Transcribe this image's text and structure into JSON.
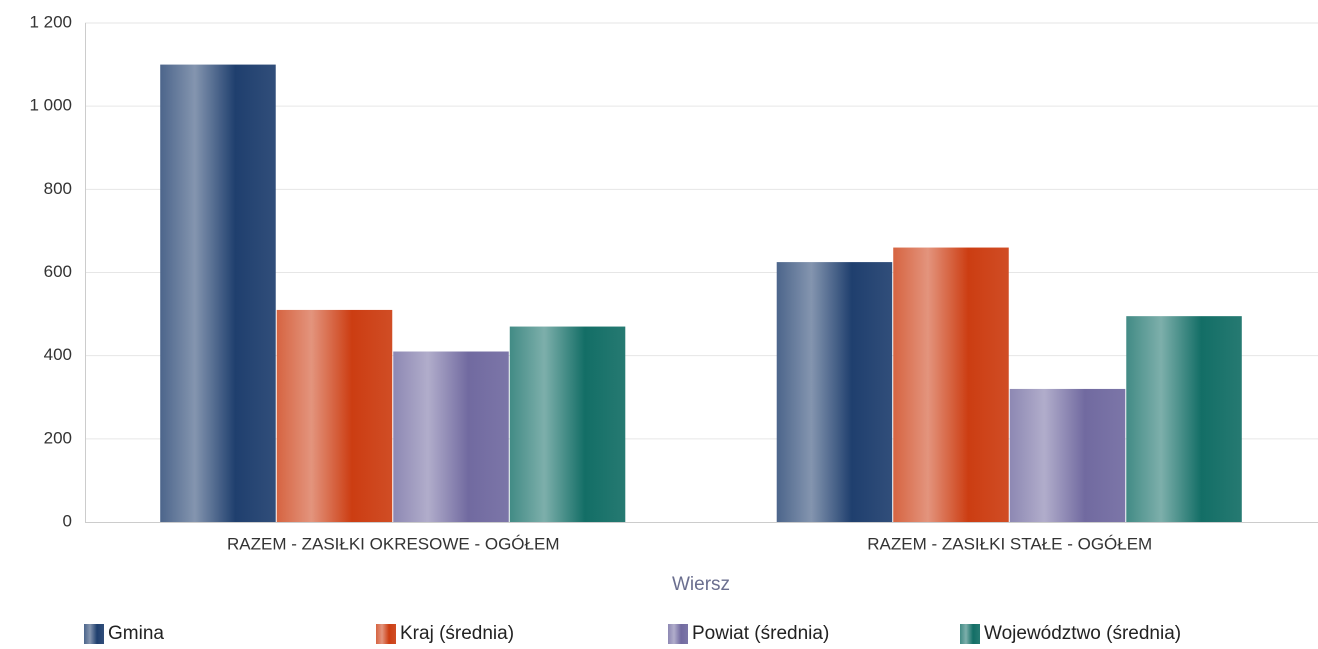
{
  "chart_data": {
    "type": "bar",
    "categories": [
      "RAZEM -  ZASIŁKI OKRESOWE - OGÓŁEM",
      "RAZEM -  ZASIŁKI STAŁE - OGÓŁEM"
    ],
    "series": [
      {
        "name": "Gmina",
        "color": "#1f3f6e",
        "values": [
          1100,
          625
        ]
      },
      {
        "name": "Kraj (średnia)",
        "color": "#cc3d12",
        "values": [
          510,
          660
        ]
      },
      {
        "name": "Powiat (średnia)",
        "color": "#716aa0",
        "values": [
          410,
          320
        ]
      },
      {
        "name": "Województwo (średnia)",
        "color": "#136e66",
        "values": [
          470,
          495
        ]
      }
    ],
    "xlabel": "Wiersz",
    "ylim": [
      0,
      1200
    ],
    "yticks": [
      0,
      200,
      400,
      600,
      800,
      {
        "value": 1000,
        "label": "1 000"
      },
      {
        "value": 1200,
        "label": "1 200"
      }
    ],
    "grid": true,
    "legend": "bottom"
  }
}
